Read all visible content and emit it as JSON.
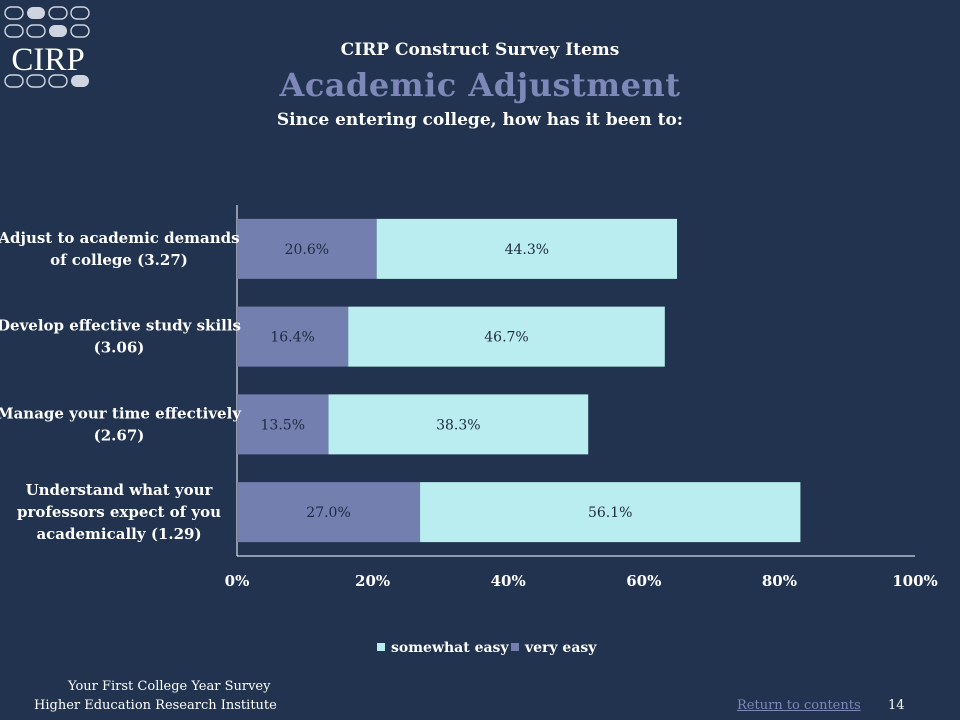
{
  "colors": {
    "background": "#22334f",
    "very_easy": "#737fae",
    "somewhat_easy": "#b9edef",
    "axis": "#ffffff",
    "text": "#ffffff",
    "bar_label": "#1f2a40",
    "title_accent": "#7d87b8",
    "link": "#7d87b8"
  },
  "logo": {
    "text": "CIRP",
    "icon": "cirp-logo"
  },
  "header": {
    "survey": "CIRP Construct Survey Items",
    "title": "Academic Adjustment",
    "subtitle": "Since entering college, how has it been to:"
  },
  "chart_data": {
    "type": "bar",
    "orientation": "horizontal",
    "stacked": true,
    "categories": [
      [
        "Adjust to academic demands",
        "of college (3.27)"
      ],
      [
        "Develop effective study skills",
        "(3.06)"
      ],
      [
        "Manage your time effectively",
        "(2.67)"
      ],
      [
        "Understand what your",
        "professors expect of you",
        "academically (1.29)"
      ]
    ],
    "series": [
      {
        "name": "very easy",
        "values": [
          20.6,
          16.4,
          13.5,
          27.0
        ],
        "labels": [
          "20.6%",
          "16.4%",
          "13.5%",
          "27.0%"
        ]
      },
      {
        "name": "somewhat easy",
        "values": [
          44.3,
          46.7,
          38.3,
          56.1
        ],
        "labels": [
          "44.3%",
          "46.7%",
          "38.3%",
          "56.1%"
        ]
      }
    ],
    "xlim": [
      0,
      100
    ],
    "xticks": [
      "0%",
      "20%",
      "40%",
      "60%",
      "80%",
      "100%"
    ],
    "grid": false,
    "legend": {
      "position": "bottom",
      "entries": [
        "somewhat easy",
        "very easy"
      ]
    }
  },
  "footer": {
    "line1": "Your First College Year Survey",
    "line2": "Higher Education Research Institute",
    "link": "Return to contents",
    "page": "14"
  }
}
